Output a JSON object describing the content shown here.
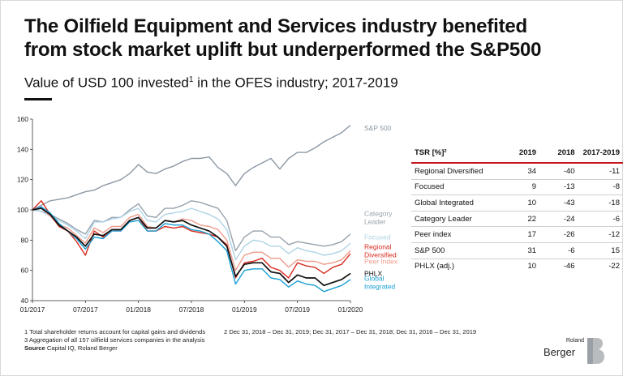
{
  "title_line1": "The Oilfield Equipment and Services industry benefited",
  "title_line2": "from stock market uplift but underperformed the S&P500",
  "subtitle_a": "Value of USD 100 invested",
  "subtitle_sup": "1",
  "subtitle_b": " in the OFES industry; 2017-2019",
  "colors": {
    "sp500": "#8c98a4",
    "category_leader": "#97a2ac",
    "focused": "#aed3e6",
    "regional": "#d82a1f",
    "peer": "#ee9b8b",
    "phlx": "#111111",
    "global": "#1a9fd3",
    "accent_rule": "#c4161c"
  },
  "chart_data": {
    "type": "line",
    "xlabel": "",
    "ylabel": "",
    "ylim": [
      40,
      160
    ],
    "yticks": [
      "40",
      "60",
      "80",
      "100",
      "120",
      "140",
      "160"
    ],
    "xticks": [
      "01/2017",
      "07/2017",
      "01/2018",
      "07/2018",
      "01/2019",
      "07/2019",
      "01/2020"
    ],
    "x_range": [
      "2017-01",
      "2020-01"
    ],
    "grid": false,
    "x": [
      "2017-01",
      "2017-02",
      "2017-03",
      "2017-04",
      "2017-05",
      "2017-06",
      "2017-07",
      "2017-08",
      "2017-09",
      "2017-10",
      "2017-11",
      "2017-12",
      "2018-01",
      "2018-02",
      "2018-03",
      "2018-04",
      "2018-05",
      "2018-06",
      "2018-07",
      "2018-08",
      "2018-09",
      "2018-10",
      "2018-11",
      "2018-12",
      "2019-01",
      "2019-02",
      "2019-03",
      "2019-04",
      "2019-05",
      "2019-06",
      "2019-07",
      "2019-08",
      "2019-09",
      "2019-10",
      "2019-11",
      "2019-12",
      "2020-01"
    ],
    "series": [
      {
        "name": "S&P 500",
        "color_key": "sp500",
        "label_lines": [
          "S&P 500"
        ],
        "label_y": 154,
        "values": [
          100,
          103,
          106,
          107,
          108,
          110,
          112,
          113,
          116,
          118,
          120,
          124,
          130,
          125,
          124,
          127,
          129,
          132,
          134,
          134,
          135,
          128,
          124,
          116,
          124,
          128,
          131,
          134,
          127,
          134,
          138,
          138,
          141,
          145,
          148,
          151,
          156
        ]
      },
      {
        "name": "Category Leader",
        "color_key": "category_leader",
        "label_lines": [
          "Category",
          "Leader"
        ],
        "label_y": 95,
        "values": [
          100,
          99,
          97,
          94,
          91,
          87,
          84,
          93,
          92,
          95,
          95,
          100,
          104,
          96,
          95,
          101,
          101,
          103,
          106,
          105,
          103,
          101,
          93,
          73,
          82,
          86,
          86,
          82,
          82,
          77,
          79,
          78,
          77,
          76,
          77,
          79,
          84
        ]
      },
      {
        "name": "Focused",
        "color_key": "focused",
        "label_lines": [
          "Focused"
        ],
        "label_y": 82,
        "values": [
          100,
          99,
          96,
          93,
          90,
          86,
          81,
          92,
          92,
          94,
          95,
          99,
          101,
          93,
          92,
          97,
          98,
          99,
          101,
          99,
          97,
          94,
          87,
          67,
          76,
          80,
          79,
          76,
          76,
          71,
          75,
          73,
          72,
          70,
          71,
          73,
          78
        ]
      },
      {
        "name": "Regional Diversified",
        "color_key": "regional",
        "label_lines": [
          "Regional",
          "Diversified"
        ],
        "label_y": 73,
        "values": [
          100,
          106,
          97,
          89,
          86,
          79,
          70,
          86,
          82,
          87,
          86,
          93,
          95,
          86,
          86,
          89,
          88,
          89,
          86,
          85,
          84,
          82,
          77,
          55,
          65,
          66,
          68,
          62,
          60,
          55,
          65,
          63,
          62,
          58,
          62,
          64,
          71
        ]
      },
      {
        "name": "Peer Index",
        "color_key": "peer",
        "label_lines": [
          "Peer Index"
        ],
        "label_y": 66,
        "values": [
          100,
          101,
          96,
          90,
          88,
          83,
          78,
          88,
          85,
          89,
          89,
          95,
          97,
          89,
          88,
          93,
          92,
          94,
          93,
          90,
          89,
          87,
          80,
          60,
          70,
          72,
          72,
          68,
          68,
          62,
          67,
          66,
          66,
          64,
          65,
          67,
          73
        ]
      },
      {
        "name": "PHLX",
        "color_key": "phlx",
        "label_lines": [
          "PHLX"
        ],
        "label_y": 58,
        "values": [
          100,
          101,
          97,
          90,
          86,
          82,
          76,
          84,
          83,
          87,
          87,
          93,
          95,
          88,
          88,
          93,
          92,
          93,
          90,
          88,
          86,
          82,
          76,
          56,
          64,
          65,
          65,
          59,
          58,
          52,
          57,
          55,
          55,
          50,
          52,
          54,
          58
        ]
      },
      {
        "name": "Global Integrated",
        "color_key": "global",
        "label_lines": [
          "Global",
          "Integrated"
        ],
        "label_y": 52,
        "values": [
          100,
          102,
          98,
          91,
          86,
          81,
          74,
          82,
          81,
          86,
          86,
          92,
          93,
          86,
          86,
          91,
          90,
          90,
          87,
          86,
          84,
          79,
          73,
          51,
          60,
          61,
          61,
          55,
          54,
          49,
          53,
          51,
          50,
          46,
          48,
          50,
          54
        ]
      }
    ]
  },
  "table": {
    "headers": [
      "TSR [%]²",
      "2019",
      "2018",
      "2017-2019"
    ],
    "rows": [
      [
        "Regional Diversified",
        "34",
        "-40",
        "-11"
      ],
      [
        "Focused",
        "9",
        "-13",
        "-8"
      ],
      [
        "Global Integrated",
        "10",
        "-43",
        "-18"
      ],
      [
        "Category Leader",
        "22",
        "-24",
        "-6"
      ],
      [
        "Peer index",
        "17",
        "-26",
        "-12"
      ],
      [
        "S&P 500",
        "31",
        "-6",
        "15"
      ],
      [
        "PHLX (adj.)",
        "10",
        "-46",
        "-22"
      ]
    ]
  },
  "footnotes": {
    "fn1": "1 Total shareholder returns account for capital gains and dividends",
    "fn2": "2 Dec 31, 2018 – Dec 31, 2019; Dec 31, 2017 – Dec 31, 2018; Dec 31, 2016 – Dec 31, 2019",
    "fn3": "3 Aggregation of all 157 oilfield services companies in the analysis",
    "source_label": "Source",
    "source_value": " Capital IQ, Roland Berger"
  },
  "logo": {
    "small": "Roland",
    "big": "Berger"
  }
}
